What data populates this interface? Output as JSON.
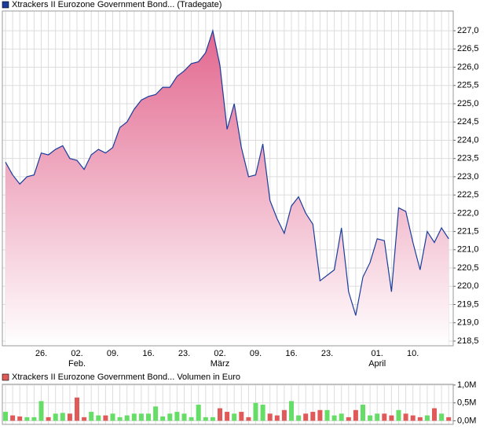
{
  "chart_data": [
    {
      "type": "area",
      "categories": [
        null,
        null,
        null,
        null,
        null,
        "26.",
        null,
        null,
        null,
        null,
        "02.",
        null,
        null,
        null,
        null,
        "09.",
        null,
        null,
        null,
        null,
        "16.",
        null,
        null,
        null,
        null,
        "23.",
        null,
        null,
        null,
        null,
        "02.",
        null,
        null,
        null,
        null,
        "09.",
        null,
        null,
        null,
        null,
        "16.",
        null,
        null,
        null,
        null,
        "23.",
        null,
        null,
        null,
        null,
        null,
        null,
        "01.",
        null,
        null,
        null,
        null,
        "10.",
        null,
        null,
        null,
        null,
        null
      ],
      "months": [
        null,
        null,
        null,
        null,
        null,
        null,
        null,
        null,
        null,
        null,
        "Feb.",
        null,
        null,
        null,
        null,
        null,
        null,
        null,
        null,
        null,
        null,
        null,
        null,
        null,
        null,
        null,
        null,
        null,
        null,
        null,
        "März",
        null,
        null,
        null,
        null,
        null,
        null,
        null,
        null,
        null,
        null,
        null,
        null,
        null,
        null,
        null,
        null,
        null,
        null,
        null,
        null,
        null,
        "April",
        null,
        null,
        null,
        null,
        null,
        null,
        null,
        null,
        null,
        null
      ],
      "series": [
        {
          "name": "Xtrackers II Eurozone Government Bond... (Tradegate)",
          "color": "#1a3c9c",
          "values": [
            223.4,
            223.05,
            222.8,
            223.0,
            223.05,
            223.65,
            223.6,
            223.75,
            223.85,
            223.5,
            223.45,
            223.2,
            223.6,
            223.75,
            223.65,
            223.8,
            224.35,
            224.5,
            224.85,
            225.1,
            225.2,
            225.25,
            225.45,
            225.45,
            225.75,
            225.9,
            226.1,
            226.15,
            226.4,
            227.0,
            226.05,
            224.3,
            225.0,
            223.8,
            223.0,
            223.05,
            223.9,
            222.35,
            221.85,
            221.45,
            222.2,
            222.45,
            222.0,
            221.7,
            220.15,
            220.3,
            220.45,
            221.6,
            219.85,
            219.2,
            220.25,
            220.65,
            221.3,
            221.25,
            219.85,
            222.15,
            222.05,
            221.2,
            220.45,
            221.5,
            221.2,
            221.6,
            221.3
          ]
        }
      ],
      "fill_color": "#e2678f",
      "ylim": [
        218.37,
        227.54
      ],
      "yticks": [
        {
          "value": 218.5,
          "label": "218,5"
        },
        {
          "value": 219,
          "label": "219,0"
        },
        {
          "value": 219.5,
          "label": "219,5"
        },
        {
          "value": 220,
          "label": "220,0"
        },
        {
          "value": 220.5,
          "label": "220,5"
        },
        {
          "value": 221,
          "label": "221,0"
        },
        {
          "value": 221.5,
          "label": "221,5"
        },
        {
          "value": 222,
          "label": "222,0"
        },
        {
          "value": 222.5,
          "label": "222,5"
        },
        {
          "value": 223,
          "label": "223,0"
        },
        {
          "value": 223.5,
          "label": "223,5"
        },
        {
          "value": 224,
          "label": "224,0"
        },
        {
          "value": 224.5,
          "label": "224,5"
        },
        {
          "value": 225,
          "label": "225,0"
        },
        {
          "value": 225.5,
          "label": "225,5"
        },
        {
          "value": 226,
          "label": "226,0"
        },
        {
          "value": 226.5,
          "label": "226,5"
        },
        {
          "value": 227,
          "label": "227,0"
        }
      ],
      "grid": true
    },
    {
      "type": "bar",
      "series": [
        {
          "name": "Xtrackers II Eurozone Government Bond... Volumen in Euro",
          "color": "#e05a5a",
          "values": [
            0.25,
            0.15,
            0.12,
            0.1,
            0.1,
            0.55,
            0.1,
            0.2,
            0.22,
            0.2,
            0.65,
            0.1,
            0.25,
            0.15,
            0.15,
            0.2,
            0.1,
            0.15,
            0.2,
            0.2,
            0.2,
            0.4,
            0.12,
            0.2,
            0.25,
            0.2,
            0.1,
            0.45,
            0.1,
            0.1,
            0.35,
            0.25,
            0.2,
            0.25,
            0.1,
            0.5,
            0.45,
            0.2,
            0.15,
            0.3,
            0.55,
            0.15,
            0.2,
            0.25,
            0.3,
            0.3,
            0.15,
            0.2,
            0.1,
            0.3,
            0.45,
            0.15,
            0.2,
            0.2,
            0.15,
            0.3,
            0.2,
            0.15,
            0.1,
            0.15,
            0.35,
            0.2,
            0.1
          ]
        }
      ],
      "up_color": "#66dd66",
      "ylim": [
        -0.1,
        1.02
      ],
      "yticks": [
        {
          "value": 0,
          "label": "0,0M"
        },
        {
          "value": 0.5,
          "label": "0,5M"
        },
        {
          "value": 1,
          "label": "1,0M"
        }
      ],
      "grid": true
    }
  ]
}
